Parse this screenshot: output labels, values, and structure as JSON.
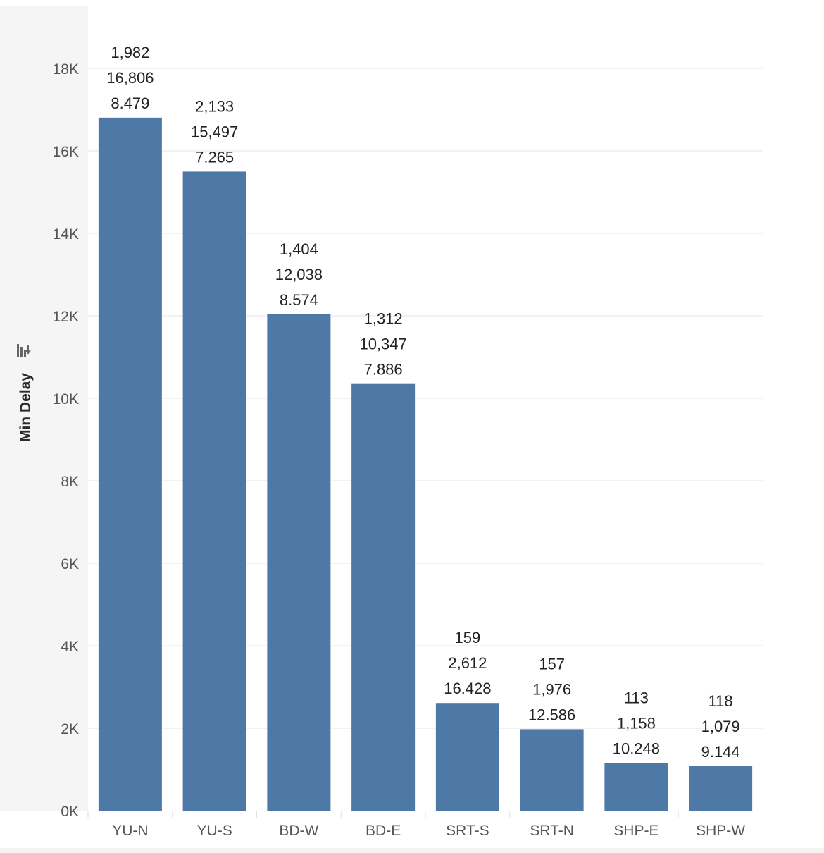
{
  "chart_data": {
    "type": "bar",
    "ylabel": "Min Delay",
    "xlabel": "",
    "ylim": [
      0,
      18000
    ],
    "yticks": [
      0,
      2000,
      4000,
      6000,
      8000,
      10000,
      12000,
      14000,
      16000,
      18000
    ],
    "ytick_labels": [
      "0K",
      "2K",
      "4K",
      "6K",
      "8K",
      "10K",
      "12K",
      "14K",
      "16K",
      "18K"
    ],
    "grid": true,
    "bar_color": "#4e79a7",
    "categories": [
      "YU-N",
      "YU-S",
      "BD-W",
      "BD-E",
      "SRT-S",
      "SRT-N",
      "SHP-E",
      "SHP-W"
    ],
    "values": [
      16806,
      15497,
      12038,
      10347,
      2612,
      1976,
      1158,
      1079
    ],
    "data_labels": [
      [
        "1,982",
        "16,806",
        "8.479"
      ],
      [
        "2,133",
        "15,497",
        "7.265"
      ],
      [
        "1,404",
        "12,038",
        "8.574"
      ],
      [
        "1,312",
        "10,347",
        "7.886"
      ],
      [
        "159",
        "2,612",
        "16.428"
      ],
      [
        "157",
        "1,976",
        "12.586"
      ],
      [
        "113",
        "1,158",
        "10.248"
      ],
      [
        "118",
        "1,079",
        "9.144"
      ]
    ],
    "sort_icon": "sort-descending-icon"
  }
}
